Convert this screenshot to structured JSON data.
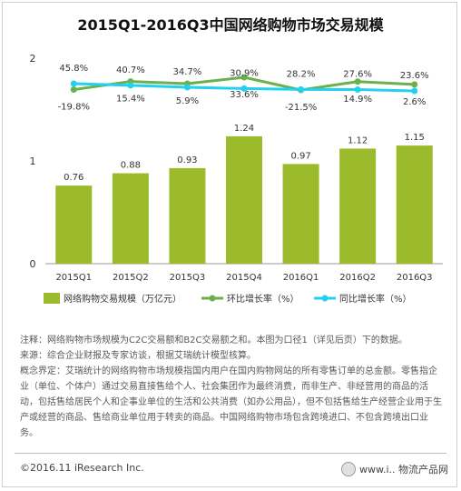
{
  "chart_data": {
    "type": "bar",
    "title": "2015Q1-2016Q3中国网络购物市场交易规模",
    "categories": [
      "2015Q1",
      "2015Q2",
      "2015Q3",
      "2015Q4",
      "2016Q1",
      "2016Q2",
      "2016Q3"
    ],
    "ylim": [
      0,
      2
    ],
    "yticks": [
      "0",
      "1",
      "2"
    ],
    "grid": false,
    "legend_position": "bottom",
    "series": [
      {
        "name": "网络购物交易规模（万亿元）",
        "type": "bar",
        "color": "#9bbb2c",
        "values": [
          0.76,
          0.88,
          0.93,
          1.24,
          0.97,
          1.12,
          1.15
        ],
        "labels": [
          "0.76",
          "0.88",
          "0.93",
          "1.24",
          "0.97",
          "1.12",
          "1.15"
        ]
      },
      {
        "name": "环比增长率（%）",
        "type": "line",
        "color": "#6ab04c",
        "values": [
          -19.8,
          15.4,
          5.9,
          33.6,
          -21.5,
          14.9,
          2.6
        ],
        "labels": [
          "-19.8%",
          "15.4%",
          "5.9%",
          "33.6%",
          "-21.5%",
          "14.9%",
          "2.6%"
        ]
      },
      {
        "name": "同比增长率（%）",
        "type": "line",
        "color": "#22d0f0",
        "values": [
          45.8,
          40.7,
          34.7,
          30.9,
          28.2,
          27.6,
          23.6
        ],
        "labels": [
          "45.8%",
          "40.7%",
          "34.7%",
          "30.9%",
          "28.2%",
          "27.6%",
          "23.6%"
        ]
      }
    ]
  },
  "notes": [
    "注释：网络购物市场规模为C2C交易额和B2C交易额之和。本图为口径1（详见后页）下的数据。",
    "来源：综合企业财报及专家访谈，根据艾瑞统计模型核算。",
    "概念界定：艾瑞统计的网络购物市场规模指国内用户在国内购物网站的所有零售订单的总金额。零售指企业（单位、个体户）通过交易直接售给个人、社会集团作为最终消费，而非生产、非经营用的商品的活动，包括售给居民个人和企事业单位的生活和公共消费（如办公用品），但不包括售给生产经营企业用于生产或经营的商品、售给商业单位用于转卖的商品。中国网络购物市场包含跨境进口、不包含跨境出口业务。"
  ],
  "footer": {
    "copyright": "©2016.11 iResearch Inc.",
    "watermark": "www.i..  物流产品网"
  }
}
